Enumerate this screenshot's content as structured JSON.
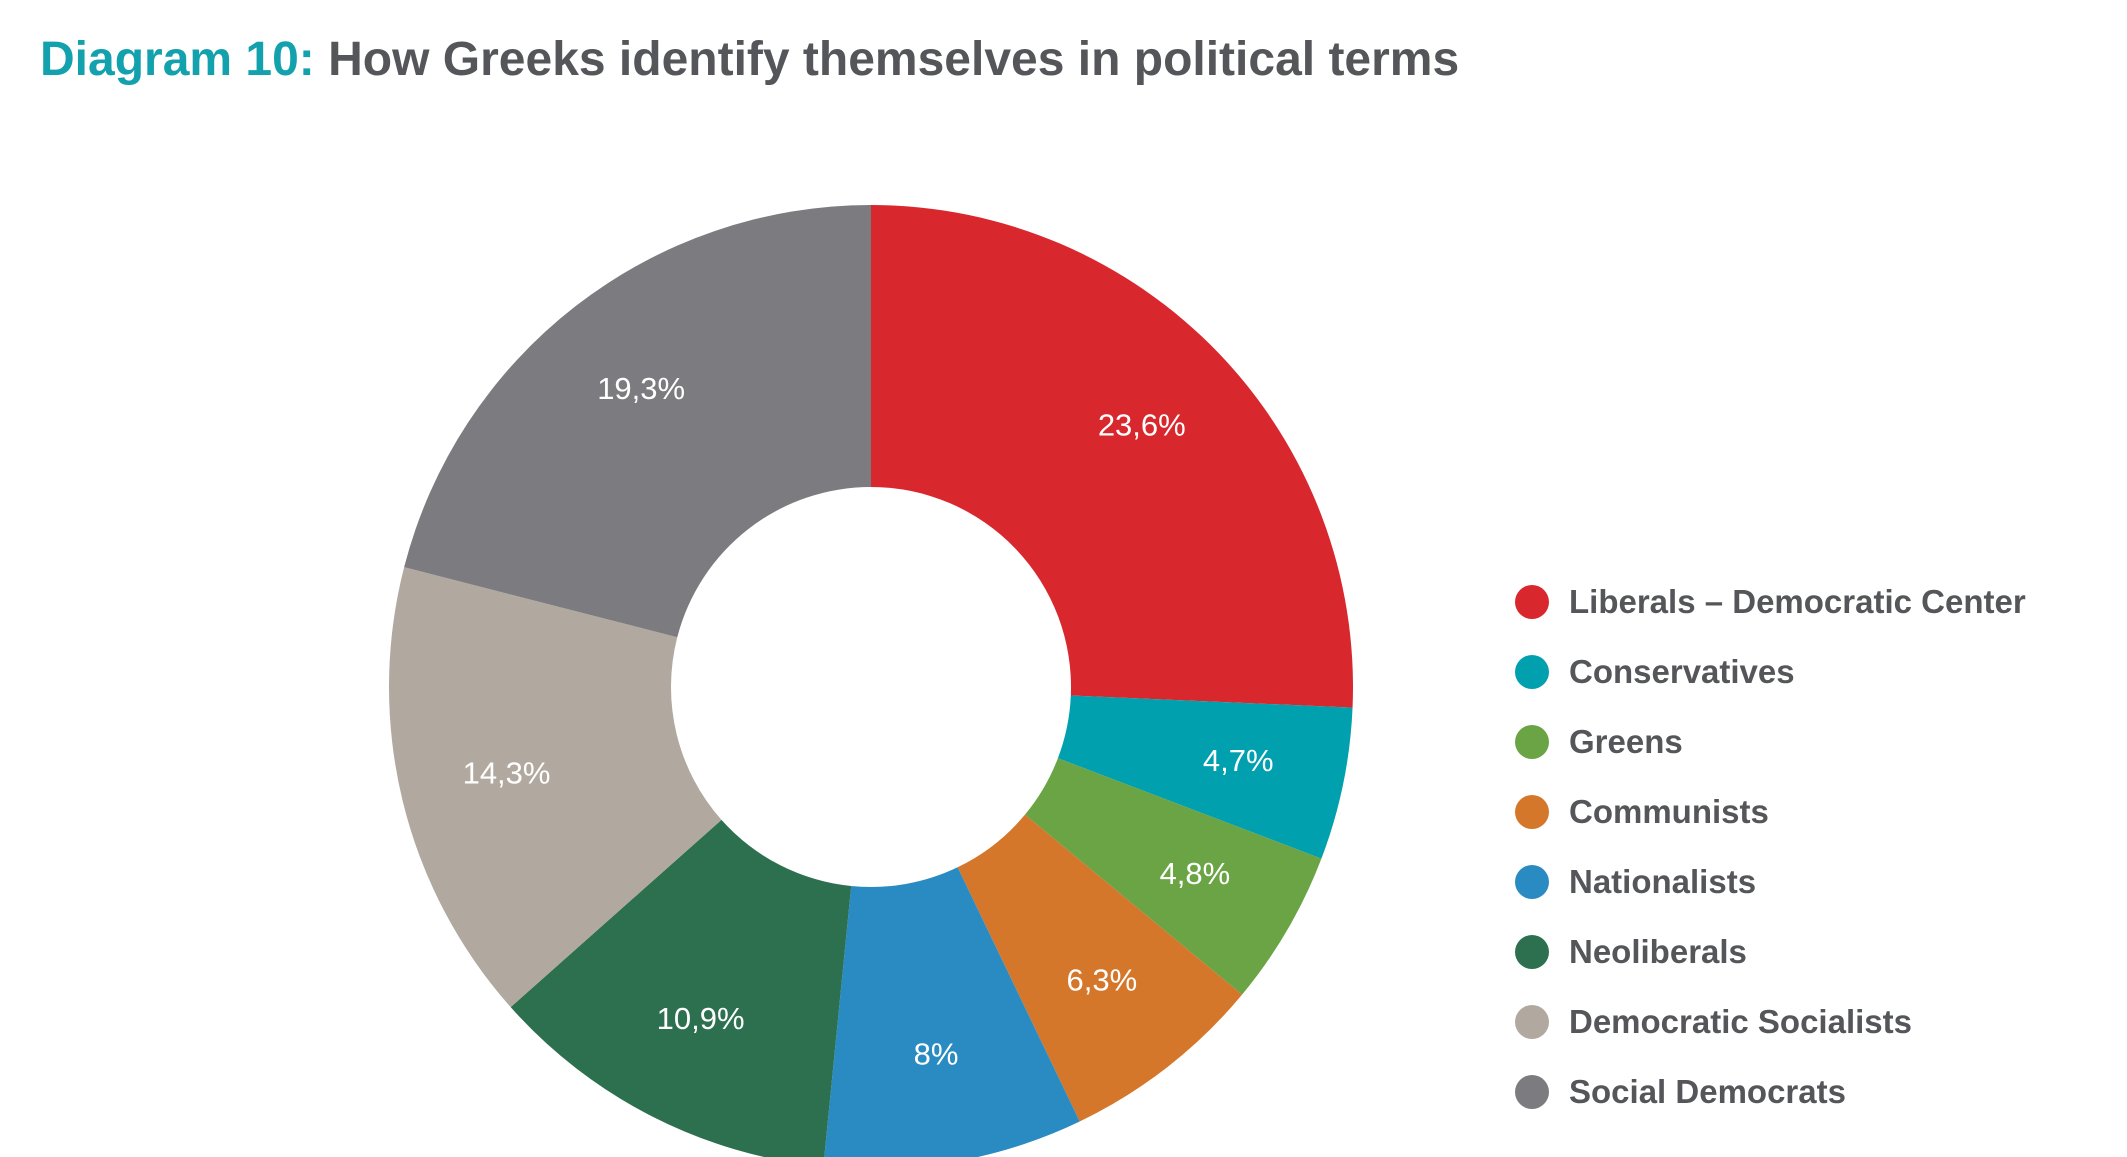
{
  "title": {
    "prefix": "Diagram 10:",
    "text": "How Greeks identify themselves in political terms"
  },
  "chart_data": {
    "type": "pie",
    "style": "donut",
    "title": "Diagram 10: How Greeks identify themselves in political terms",
    "legend_position": "right",
    "slices": [
      {
        "label": "Liberals – Democratic Center",
        "value": 23.6,
        "display": "23,6%",
        "color": "#d9272e"
      },
      {
        "label": "Conservatives",
        "value": 4.7,
        "display": "4,7%",
        "color": "#00a0ae"
      },
      {
        "label": "Greens",
        "value": 4.8,
        "display": "4,8%",
        "color": "#6aa444"
      },
      {
        "label": "Communists",
        "value": 6.3,
        "display": "6,3%",
        "color": "#d5772b"
      },
      {
        "label": "Nationalists",
        "value": 8,
        "display": "8%",
        "color": "#2a8bc2"
      },
      {
        "label": "Neoliberals",
        "value": 10.9,
        "display": "10,9%",
        "color": "#2d7050"
      },
      {
        "label": "Democratic Socialists",
        "value": 14.3,
        "display": "14,3%",
        "color": "#b1a99f"
      },
      {
        "label": "Social Democrats",
        "value": 19.3,
        "display": "19,3%",
        "color": "#7c7c80"
      }
    ]
  }
}
